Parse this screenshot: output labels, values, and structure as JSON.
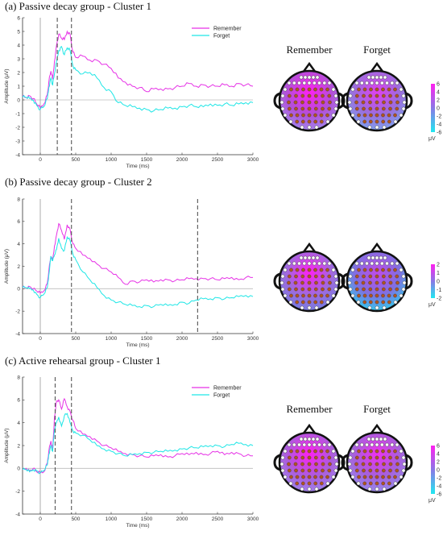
{
  "colors": {
    "remember": "#e632e6",
    "forget": "#1ee6e6",
    "cue": "#999999",
    "cluster_marker": "#555555",
    "electrode_in": "#b4531c",
    "electrode_out": "#ffffff",
    "head_outline": "#111111"
  },
  "panels": [
    {
      "title": "(a) Passive decay group - Cluster 1",
      "legend": {
        "remember": "Remember",
        "forget": "Forget"
      },
      "chart_data": {
        "type": "line",
        "x": [
          -250,
          -200,
          -150,
          -100,
          -50,
          0,
          50,
          100,
          120,
          150,
          175,
          200,
          230,
          260,
          300,
          340,
          380,
          420,
          460,
          500,
          600,
          700,
          800,
          900,
          1000,
          1100,
          1200,
          1300,
          1400,
          1500,
          1600,
          1700,
          1800,
          1900,
          2000,
          2100,
          2200,
          2300,
          2400,
          2500,
          2600,
          2700,
          2800,
          2900,
          3000
        ],
        "series": [
          {
            "name": "Remember",
            "values": [
              0.3,
              0.2,
              0.3,
              0.1,
              -0.3,
              -0.6,
              -0.3,
              0.4,
              1.3,
              2.1,
              1.5,
              2.8,
              4.0,
              4.8,
              4.5,
              4.4,
              5.0,
              4.8,
              3.5,
              3.1,
              3.2,
              2.9,
              2.9,
              2.6,
              2.3,
              1.6,
              1.3,
              1.0,
              0.9,
              0.6,
              0.8,
              0.8,
              0.8,
              0.9,
              1.0,
              1.2,
              1.0,
              1.1,
              1.0,
              1.0,
              1.1,
              1.0,
              1.2,
              1.1,
              1.0
            ]
          },
          {
            "name": "Forget",
            "values": [
              0.2,
              0.2,
              0.1,
              0.0,
              -0.4,
              -0.7,
              -0.5,
              0.1,
              0.9,
              1.6,
              1.1,
              1.9,
              2.8,
              3.6,
              3.9,
              3.3,
              3.8,
              3.6,
              2.5,
              2.2,
              1.9,
              2.0,
              1.6,
              0.9,
              0.6,
              -0.2,
              -0.4,
              -0.5,
              -0.6,
              -0.7,
              -0.8,
              -0.7,
              -0.6,
              -0.6,
              -0.5,
              -0.4,
              -0.5,
              -0.5,
              -0.3,
              -0.4,
              -0.3,
              -0.4,
              -0.3,
              -0.2,
              -0.2
            ]
          }
        ],
        "xlabel": "Time (ms)",
        "ylabel": "Amplitude (μV)",
        "xlim": [
          -250,
          3000
        ],
        "ylim": [
          -4,
          6
        ],
        "xticks": [
          0,
          500,
          1000,
          1500,
          2000,
          2500,
          3000
        ],
        "yticks": [
          -4,
          -3,
          -2,
          -1,
          0,
          1,
          2,
          3,
          4,
          5,
          6
        ],
        "cluster_bounds_ms": [
          240,
          440
        ],
        "legend_placement": "top-right",
        "grid": false
      },
      "topomap": {
        "labels": [
          "Remember",
          "Forget"
        ],
        "colorbar_ticks": [
          "6",
          "4",
          "2",
          "0",
          "-2",
          "-4",
          "-6"
        ],
        "colorbar_unit": "μV",
        "scale": "wide",
        "maps": [
          {
            "base": "#b350d8",
            "hot": "#ff20f0",
            "cool": "#a08cf0"
          },
          {
            "base": "#9c6ddd",
            "hot": "#e040ee",
            "cool": "#7aa8f0"
          }
        ]
      }
    },
    {
      "title": "(b) Passive decay group - Cluster 2",
      "legend": null,
      "chart_data": {
        "type": "line",
        "x": [
          -250,
          -200,
          -150,
          -100,
          -50,
          0,
          50,
          100,
          120,
          150,
          175,
          200,
          230,
          260,
          300,
          340,
          380,
          420,
          460,
          500,
          600,
          700,
          800,
          900,
          1000,
          1100,
          1200,
          1300,
          1400,
          1500,
          1600,
          1700,
          1800,
          1900,
          2000,
          2100,
          2200,
          2300,
          2400,
          2500,
          2600,
          2700,
          2800,
          2900,
          3000
        ],
        "series": [
          {
            "name": "Remember",
            "values": [
              0.2,
              0.1,
              0.2,
              0.0,
              -0.2,
              -0.4,
              -0.2,
              0.5,
              1.6,
              2.9,
              2.5,
              3.8,
              4.8,
              5.8,
              5.2,
              4.4,
              5.7,
              5.3,
              4.0,
              3.6,
              3.0,
              2.7,
              2.2,
              1.8,
              1.5,
              1.0,
              0.4,
              0.7,
              0.6,
              0.8,
              0.6,
              0.8,
              0.8,
              0.7,
              0.8,
              0.9,
              0.9,
              0.9,
              0.9,
              0.8,
              0.9,
              1.0,
              0.8,
              1.0,
              1.0
            ]
          },
          {
            "name": "Forget",
            "values": [
              0.1,
              0.1,
              0.0,
              -0.1,
              -0.5,
              -0.8,
              -0.5,
              0.1,
              1.2,
              2.9,
              2.5,
              3.0,
              3.5,
              4.5,
              3.6,
              3.4,
              4.6,
              4.3,
              3.1,
              2.6,
              1.5,
              0.8,
              0.1,
              -0.6,
              -1.0,
              -1.2,
              -1.4,
              -1.5,
              -1.6,
              -1.5,
              -1.6,
              -1.4,
              -1.5,
              -1.4,
              -1.2,
              -1.3,
              -1.0,
              -0.9,
              -0.9,
              -0.8,
              -0.9,
              -0.8,
              -0.7,
              -0.6,
              -0.7
            ]
          }
        ],
        "xlabel": "Time (ms)",
        "ylabel": "Amplitude (μV)",
        "xlim": [
          -250,
          3000
        ],
        "ylim": [
          -4,
          8
        ],
        "xticks": [
          0,
          500,
          1000,
          1500,
          2000,
          2500,
          3000
        ],
        "yticks": [
          -4,
          -2,
          0,
          2,
          4,
          6,
          8
        ],
        "cluster_bounds_ms": [
          440,
          2220
        ],
        "legend_placement": "none",
        "grid": false
      },
      "topomap": {
        "labels": [
          "",
          ""
        ],
        "colorbar_ticks": [
          "2",
          "1",
          "0",
          "-1",
          "-2"
        ],
        "colorbar_unit": "μV",
        "scale": "narrow",
        "maps": [
          {
            "base": "#a06ade",
            "hot": "#ff20f0",
            "cool": "#6f7fe2"
          },
          {
            "base": "#8070e0",
            "hot": "#c04be8",
            "cool": "#26d8f0"
          }
        ]
      }
    },
    {
      "title": "(c) Active rehearsal group - Cluster 1",
      "legend": {
        "remember": "Remember",
        "forget": "Forget"
      },
      "chart_data": {
        "type": "line",
        "x": [
          -250,
          -200,
          -150,
          -100,
          -50,
          0,
          50,
          100,
          120,
          150,
          175,
          200,
          230,
          260,
          300,
          340,
          380,
          420,
          460,
          500,
          600,
          700,
          800,
          900,
          1000,
          1100,
          1200,
          1300,
          1400,
          1500,
          1600,
          1700,
          1800,
          1900,
          2000,
          2100,
          2200,
          2300,
          2400,
          2500,
          2600,
          2700,
          2800,
          2900,
          3000
        ],
        "series": [
          {
            "name": "Remember",
            "values": [
              -0.1,
              0.0,
              -0.2,
              0.0,
              -0.3,
              -0.4,
              -0.3,
              0.5,
              1.5,
              2.4,
              1.6,
              4.5,
              5.9,
              6.0,
              5.2,
              6.1,
              5.4,
              5.0,
              4.2,
              3.5,
              3.0,
              2.8,
              2.4,
              2.0,
              1.8,
              1.5,
              1.3,
              1.2,
              1.1,
              1.0,
              1.1,
              1.2,
              1.0,
              1.1,
              1.3,
              1.2,
              1.4,
              1.2,
              1.3,
              1.5,
              1.2,
              1.4,
              1.3,
              1.1,
              1.1
            ]
          },
          {
            "name": "Forget",
            "values": [
              -0.1,
              -0.1,
              -0.3,
              -0.1,
              -0.2,
              -0.4,
              -0.2,
              0.3,
              1.2,
              2.0,
              1.5,
              3.4,
              4.0,
              4.5,
              3.7,
              4.6,
              4.8,
              4.0,
              3.3,
              3.1,
              2.9,
              2.5,
              2.0,
              1.7,
              1.5,
              1.3,
              1.1,
              1.2,
              1.3,
              1.4,
              1.4,
              1.5,
              1.5,
              1.6,
              1.7,
              1.8,
              1.8,
              1.9,
              2.0,
              2.0,
              1.9,
              2.1,
              2.2,
              2.1,
              2.0
            ]
          }
        ],
        "xlabel": "Time (ms)",
        "ylabel": "Amplitude (μV)",
        "xlim": [
          -250,
          3000
        ],
        "ylim": [
          -4,
          8
        ],
        "xticks": [
          0,
          500,
          1000,
          1500,
          2000,
          2500,
          3000
        ],
        "yticks": [
          -4,
          -2,
          0,
          2,
          4,
          6,
          8
        ],
        "cluster_bounds_ms": [
          210,
          440
        ],
        "legend_placement": "top-right",
        "grid": false
      },
      "topomap": {
        "labels": [
          "Remember",
          "Forget"
        ],
        "colorbar_ticks": [
          "6",
          "4",
          "2",
          "0",
          "-2",
          "-4",
          "-6"
        ],
        "colorbar_unit": "μV",
        "scale": "wide",
        "maps": [
          {
            "base": "#ad5cdc",
            "hot": "#ff20f0",
            "cool": "#9d88ee"
          },
          {
            "base": "#a760dc",
            "hot": "#f030ee",
            "cool": "#9690ee"
          }
        ]
      }
    }
  ]
}
